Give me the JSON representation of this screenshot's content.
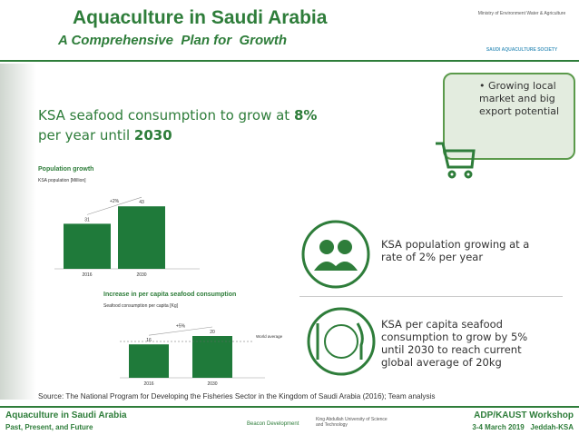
{
  "header": {
    "title": "Aquaculture in Saudi Arabia",
    "subtitle": "A Comprehensive  Plan for  Growth",
    "logos": [
      "Ministry of Environment Water & Agriculture",
      "SAUDI AQUACULTURE SOCIETY"
    ]
  },
  "headline": [
    "KSA seafood consumption to grow at ",
    "8%",
    "per year until ",
    "2030"
  ],
  "charts": [
    {
      "title": "Population growth",
      "subtitle": "KSA population [Million]",
      "change": "+2%",
      "bars": [
        {
          "label": "2016",
          "value": 31
        },
        {
          "label": "2030",
          "value": 43
        }
      ]
    },
    {
      "title": "Increase in per capita seafood consumption",
      "subtitle": "Seafood consumption per capita [Kg]",
      "change": "+5%",
      "note": "World average 20 kg",
      "bars": [
        {
          "label": "2016",
          "value": 16
        },
        {
          "label": "2030",
          "value": 20
        }
      ]
    }
  ],
  "callouts": [
    "Growing local market and big export potential",
    "KSA population growing at a rate of 2% per year",
    "KSA per capita seafood consumption to grow by 5% until 2030 to reach current global average of 20kg"
  ],
  "source": "Source: The National Program for Developing the Fisheries Sector in the Kingdom of Saudi Arabia (2016); Team analysis",
  "footer": {
    "left_title": "Aquaculture in Saudi Arabia",
    "left_subtitle": "Past, Present, and Future",
    "center": [
      "Beacon Development",
      "King Abdullah University of Science and Technology"
    ],
    "right_title": "ADP/KAUST Workshop",
    "right_subtitle": "3-4 March 2019   Jeddah-KSA"
  }
}
